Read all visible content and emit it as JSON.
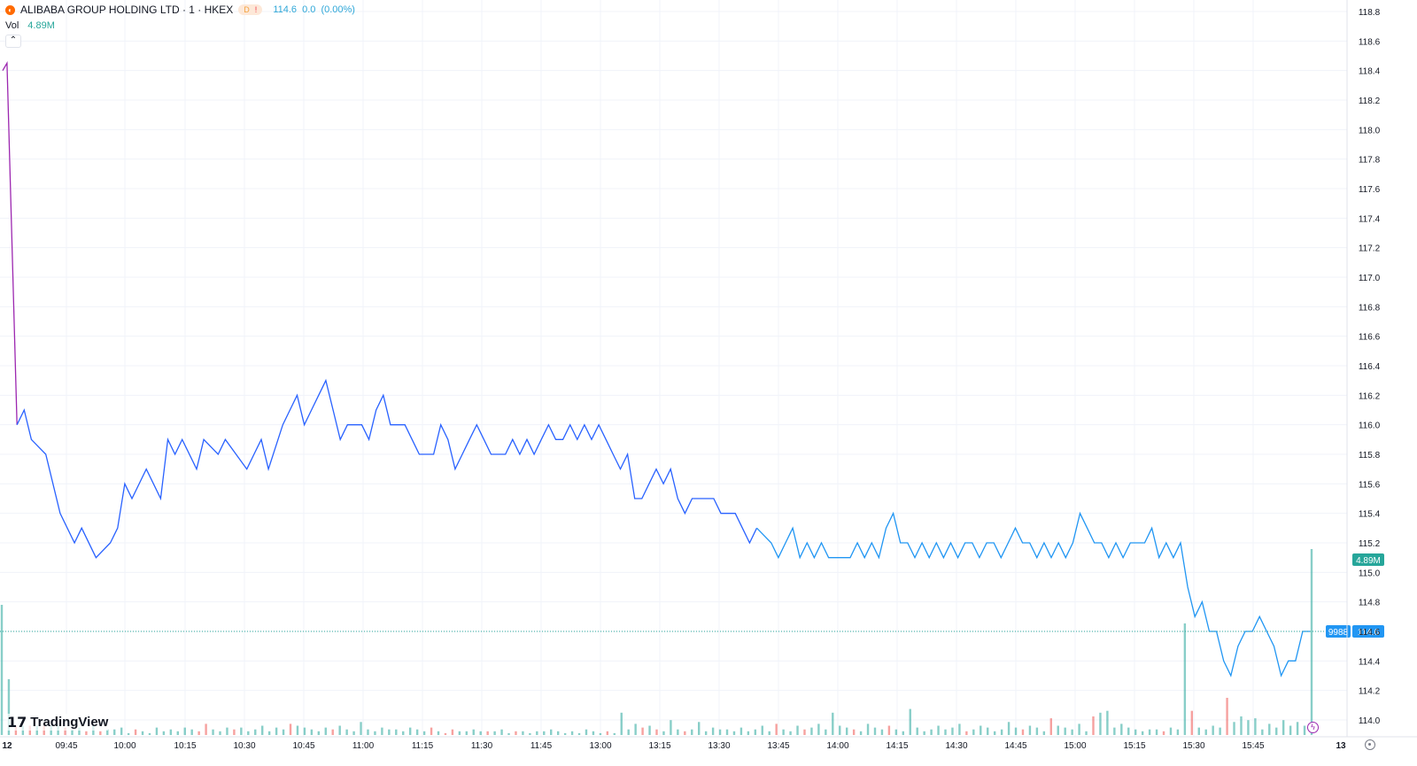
{
  "header": {
    "symbol_icon": "alibaba-logo-icon",
    "title": "ALIBABA GROUP HOLDING LTD · 1 · HKEX",
    "badge_d": "D",
    "badge_ex": "!",
    "last": "114.6",
    "change": "0.0",
    "change_pct": "(0.00%)",
    "vol_label": "Vol",
    "vol_value": "4.89M"
  },
  "price_axis": {
    "ticks": [
      "118.8",
      "118.6",
      "118.4",
      "118.2",
      "118.0",
      "117.8",
      "117.6",
      "117.4",
      "117.2",
      "117.0",
      "116.8",
      "116.6",
      "116.4",
      "116.2",
      "116.0",
      "115.8",
      "115.6",
      "115.4",
      "115.2",
      "115.0",
      "114.8",
      "114.6",
      "114.4",
      "114.2",
      "114.0"
    ],
    "vol_badge": "4.89M",
    "ticker_badge": "9988",
    "price_badge": "114.6"
  },
  "time_axis": {
    "labels": [
      "12",
      "09:45",
      "10:00",
      "10:15",
      "10:30",
      "10:45",
      "11:00",
      "11:15",
      "11:30",
      "11:45",
      "13:00",
      "13:15",
      "13:30",
      "13:45",
      "14:00",
      "14:15",
      "14:30",
      "14:45",
      "15:00",
      "15:15",
      "15:30",
      "15:45",
      "13"
    ]
  },
  "branding": {
    "logo_text": "TradingView",
    "logo_mark": "17"
  },
  "colors": {
    "line": "#2962ff",
    "line_late": "#2196f3",
    "line_open": "#9c27b0",
    "vol_up": "#26a69a",
    "vol_down": "#ef5350",
    "last_price": "#26a69a",
    "badge_blue": "#2196f3"
  },
  "chart_data": {
    "type": "line",
    "title": "ALIBABA GROUP HOLDING LTD · 1 · HKEX",
    "xlabel": "",
    "ylabel": "",
    "ylim": [
      113.95,
      118.85
    ],
    "last_price": 114.6,
    "x_range": [
      "09:30",
      "16:00"
    ],
    "price_path": [
      [
        0,
        118.4
      ],
      [
        0.6,
        118.45
      ],
      [
        2,
        116.0
      ],
      [
        3,
        116.1
      ],
      [
        4,
        115.9
      ],
      [
        6,
        115.8
      ],
      [
        8,
        115.4
      ],
      [
        10,
        115.2
      ],
      [
        11,
        115.3
      ],
      [
        13,
        115.1
      ],
      [
        15,
        115.2
      ],
      [
        16,
        115.3
      ],
      [
        17,
        115.6
      ],
      [
        18,
        115.5
      ],
      [
        20,
        115.7
      ],
      [
        21,
        115.6
      ],
      [
        22,
        115.5
      ],
      [
        23,
        115.9
      ],
      [
        24,
        115.8
      ],
      [
        25,
        115.9
      ],
      [
        27,
        115.7
      ],
      [
        28,
        115.9
      ],
      [
        30,
        115.8
      ],
      [
        31,
        115.9
      ],
      [
        34,
        115.7
      ],
      [
        35,
        115.8
      ],
      [
        36,
        115.9
      ],
      [
        37,
        115.7
      ],
      [
        39,
        116.0
      ],
      [
        40,
        116.1
      ],
      [
        41,
        116.2
      ],
      [
        42,
        116.0
      ],
      [
        43,
        116.1
      ],
      [
        44,
        116.2
      ],
      [
        45,
        116.3
      ],
      [
        46,
        116.1
      ],
      [
        47,
        115.9
      ],
      [
        48,
        116.0
      ],
      [
        50,
        116.0
      ],
      [
        51,
        115.9
      ],
      [
        52,
        116.1
      ],
      [
        53,
        116.2
      ],
      [
        54,
        116.0
      ],
      [
        56,
        116.0
      ],
      [
        57,
        115.9
      ],
      [
        58,
        115.8
      ],
      [
        60,
        115.8
      ],
      [
        61,
        116.0
      ],
      [
        62,
        115.9
      ],
      [
        63,
        115.7
      ],
      [
        64,
        115.8
      ],
      [
        65,
        115.9
      ],
      [
        66,
        116.0
      ],
      [
        67,
        115.9
      ],
      [
        68,
        115.8
      ],
      [
        70,
        115.8
      ],
      [
        71,
        115.9
      ],
      [
        72,
        115.8
      ],
      [
        73,
        115.9
      ],
      [
        74,
        115.8
      ],
      [
        75,
        115.9
      ],
      [
        76,
        116.0
      ],
      [
        77,
        115.9
      ],
      [
        78,
        115.9
      ],
      [
        79,
        116.0
      ],
      [
        80,
        115.9
      ],
      [
        81,
        116.0
      ],
      [
        82,
        115.9
      ],
      [
        83,
        116.0
      ],
      [
        84,
        115.9
      ],
      [
        85,
        115.8
      ],
      [
        86,
        115.7
      ],
      [
        87,
        115.8
      ],
      [
        88,
        115.5
      ],
      [
        89,
        115.5
      ],
      [
        90,
        115.6
      ],
      [
        91,
        115.7
      ],
      [
        92,
        115.6
      ],
      [
        93,
        115.7
      ],
      [
        94,
        115.5
      ],
      [
        95,
        115.4
      ],
      [
        96,
        115.5
      ],
      [
        99,
        115.5
      ],
      [
        100,
        115.4
      ],
      [
        102,
        115.4
      ],
      [
        103,
        115.3
      ],
      [
        104,
        115.2
      ],
      [
        105,
        115.3
      ],
      [
        107,
        115.2
      ],
      [
        108,
        115.1
      ],
      [
        109,
        115.2
      ],
      [
        110,
        115.3
      ],
      [
        111,
        115.1
      ],
      [
        112,
        115.2
      ],
      [
        113,
        115.1
      ],
      [
        114,
        115.2
      ],
      [
        115,
        115.1
      ],
      [
        118,
        115.1
      ],
      [
        119,
        115.2
      ],
      [
        120,
        115.1
      ],
      [
        121,
        115.2
      ],
      [
        122,
        115.1
      ],
      [
        123,
        115.3
      ],
      [
        124,
        115.4
      ],
      [
        125,
        115.2
      ],
      [
        126,
        115.2
      ],
      [
        127,
        115.1
      ],
      [
        128,
        115.2
      ],
      [
        129,
        115.1
      ],
      [
        130,
        115.2
      ],
      [
        131,
        115.1
      ],
      [
        132,
        115.2
      ],
      [
        133,
        115.1
      ],
      [
        134,
        115.2
      ],
      [
        135,
        115.2
      ],
      [
        136,
        115.1
      ],
      [
        137,
        115.2
      ],
      [
        138,
        115.2
      ],
      [
        139,
        115.1
      ],
      [
        140,
        115.2
      ],
      [
        141,
        115.3
      ],
      [
        142,
        115.2
      ],
      [
        143,
        115.2
      ],
      [
        144,
        115.1
      ],
      [
        145,
        115.2
      ],
      [
        146,
        115.1
      ],
      [
        147,
        115.2
      ],
      [
        148,
        115.1
      ],
      [
        149,
        115.2
      ],
      [
        150,
        115.4
      ],
      [
        151,
        115.3
      ],
      [
        152,
        115.2
      ],
      [
        153,
        115.2
      ],
      [
        154,
        115.1
      ],
      [
        155,
        115.2
      ],
      [
        156,
        115.1
      ],
      [
        157,
        115.2
      ],
      [
        159,
        115.2
      ],
      [
        160,
        115.3
      ],
      [
        161,
        115.1
      ],
      [
        162,
        115.2
      ],
      [
        163,
        115.1
      ],
      [
        164,
        115.2
      ],
      [
        165,
        114.9
      ],
      [
        166,
        114.7
      ],
      [
        167,
        114.8
      ],
      [
        168,
        114.6
      ],
      [
        169,
        114.6
      ],
      [
        170,
        114.4
      ],
      [
        171,
        114.3
      ],
      [
        172,
        114.5
      ],
      [
        173,
        114.6
      ],
      [
        174,
        114.6
      ],
      [
        175,
        114.7
      ],
      [
        176,
        114.6
      ],
      [
        177,
        114.5
      ],
      [
        178,
        114.3
      ],
      [
        179,
        114.4
      ],
      [
        180,
        114.4
      ],
      [
        181,
        114.6
      ],
      [
        182,
        114.6
      ]
    ],
    "volume": [
      0.7,
      0.3,
      0.05,
      0.05,
      0.05,
      0.05,
      0.05,
      0.05,
      0.06,
      0.04,
      0.03,
      0.04,
      0.02,
      0.05,
      0.02,
      0.03,
      0.03,
      0.04,
      0.01,
      0.03,
      0.02,
      0.01,
      0.04,
      0.02,
      0.03,
      0.02,
      0.04,
      0.03,
      0.02,
      0.06,
      0.03,
      0.02,
      0.04,
      0.03,
      0.04,
      0.02,
      0.03,
      0.05,
      0.02,
      0.04,
      0.03,
      0.06,
      0.05,
      0.04,
      0.03,
      0.02,
      0.04,
      0.03,
      0.05,
      0.03,
      0.02,
      0.07,
      0.03,
      0.02,
      0.04,
      0.03,
      0.03,
      0.02,
      0.04,
      0.03,
      0.02,
      0.04,
      0.02,
      0.01,
      0.03,
      0.02,
      0.02,
      0.03,
      0.02,
      0.02,
      0.02,
      0.03,
      0.01,
      0.02,
      0.02,
      0.01,
      0.02,
      0.02,
      0.03,
      0.02,
      0.01,
      0.02,
      0.01,
      0.03,
      0.02,
      0.01,
      0.02,
      0.01,
      0.12,
      0.03,
      0.06,
      0.04,
      0.05,
      0.03,
      0.02,
      0.08,
      0.03,
      0.02,
      0.03,
      0.07,
      0.02,
      0.04,
      0.03,
      0.03,
      0.02,
      0.04,
      0.02,
      0.03,
      0.05,
      0.02,
      0.06,
      0.03,
      0.02,
      0.05,
      0.03,
      0.04,
      0.06,
      0.03,
      0.12,
      0.05,
      0.04,
      0.03,
      0.02,
      0.06,
      0.04,
      0.03,
      0.05,
      0.03,
      0.02,
      0.14,
      0.04,
      0.02,
      0.03,
      0.05,
      0.03,
      0.04,
      0.06,
      0.02,
      0.03,
      0.05,
      0.04,
      0.02,
      0.03,
      0.07,
      0.04,
      0.03,
      0.05,
      0.04,
      0.02,
      0.09,
      0.05,
      0.04,
      0.03,
      0.06,
      0.02,
      0.1,
      0.12,
      0.13,
      0.04,
      0.06,
      0.04,
      0.03,
      0.02,
      0.03,
      0.03,
      0.02,
      0.04,
      0.03,
      0.6,
      0.13,
      0.04,
      0.03,
      0.05,
      0.04,
      0.2,
      0.07,
      0.1,
      0.08,
      0.09,
      0.03,
      0.06,
      0.04,
      0.08,
      0.05,
      0.07,
      0.05,
      1.0
    ],
    "volume_down": [
      2,
      4,
      6,
      9,
      12,
      14,
      19,
      28,
      29,
      33,
      41,
      47,
      61,
      63,
      64,
      69,
      73,
      86,
      91,
      93,
      97,
      110,
      114,
      121,
      126,
      137,
      145,
      149,
      155,
      165,
      169,
      174
    ]
  }
}
